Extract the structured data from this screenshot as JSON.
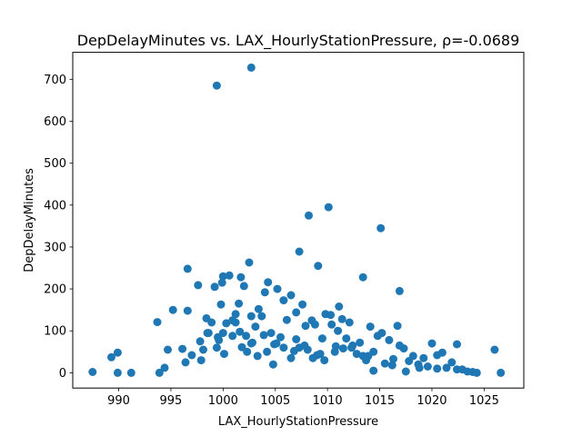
{
  "chart_data": {
    "type": "scatter",
    "title": "DepDelayMinutes vs. LAX_HourlyStationPressure, ρ=-0.0689",
    "xlabel": "LAX_HourlyStationPressure",
    "ylabel": "DepDelayMinutes",
    "xlim": [
      985.6,
      1028.8
    ],
    "ylim": [
      -36.4,
      764.4
    ],
    "xticks": [
      990,
      995,
      1000,
      1005,
      1010,
      1015,
      1020,
      1025
    ],
    "yticks": [
      0,
      100,
      200,
      300,
      400,
      500,
      600,
      700
    ],
    "grid": false,
    "point_color": "#1f77b4",
    "x": [
      987.5,
      989.3,
      989.9,
      989.9,
      991.2,
      993.7,
      993.9,
      994.4,
      994.7,
      995.2,
      996.1,
      996.4,
      996.6,
      997.0,
      997.6,
      997.8,
      998.1,
      998.4,
      998.6,
      998.9,
      999.2,
      999.4,
      999.5,
      999.8,
      999.9,
      1000.0,
      1000.1,
      1000.3,
      1000.6,
      1000.9,
      1001.2,
      1001.5,
      1001.7,
      1001.8,
      1002.0,
      1002.3,
      1002.5,
      1002.7,
      1002.8,
      1003.1,
      1003.3,
      1003.7,
      1004.0,
      1004.3,
      1004.6,
      1004.9,
      1005.2,
      1005.5,
      1005.8,
      1006.1,
      1006.5,
      1006.8,
      1007.0,
      1007.3,
      1007.6,
      1007.9,
      1008.2,
      1008.5,
      1008.8,
      1009.1,
      1009.5,
      1009.8,
      1010.1,
      1010.4,
      1010.8,
      1011.1,
      1011.4,
      1011.8,
      1012.1,
      1012.4,
      1012.8,
      1013.1,
      1013.4,
      1013.7,
      1014.1,
      1014.4,
      1014.8,
      1015.1,
      1015.5,
      1015.9,
      1016.3,
      1016.7,
      1016.9,
      1017.3,
      1017.8,
      1018.2,
      1018.7,
      1019.2,
      1019.6,
      1020.0,
      1020.5,
      1021.0,
      1021.4,
      1021.9,
      1022.4,
      1022.9,
      1023.4,
      1023.9,
      1024.3,
      1026.0,
      1026.6,
      999.4,
      1002.7,
      1010.3,
      1008.1,
      1015.2,
      1007.3,
      1009.0,
      1002.7,
      1013.4,
      1004.2,
      1016.9,
      996.6,
      1001.2,
      1000.0,
      999.6,
      1003.9,
      1011.0,
      1005.8,
      1007.0,
      1009.7,
      998.5,
      1003.4,
      1006.5,
      1010.7,
      997.9,
      1001.6,
      1004.8,
      1008.6,
      1012.3,
      1014.4,
      1017.5,
      1020.5,
      1022.4,
      1000.9,
      1002.2,
      1005.1,
      1007.8,
      1009.3,
      1011.5,
      1013.9,
      1016.2,
      1018.8
    ],
    "y": [
      2,
      37,
      48,
      0,
      0,
      121,
      0,
      12,
      55,
      150,
      57,
      25,
      148,
      42,
      209,
      75,
      55,
      130,
      95,
      120,
      205,
      60,
      85,
      163,
      215,
      230,
      45,
      118,
      232,
      88,
      120,
      165,
      228,
      61,
      207,
      50,
      263,
      135,
      72,
      110,
      40,
      135,
      192,
      216,
      95,
      68,
      200,
      85,
      173,
      126,
      185,
      52,
      144,
      289,
      163,
      112,
      375,
      125,
      115,
      255,
      82,
      140,
      395,
      115,
      63,
      158,
      128,
      82,
      120,
      65,
      45,
      72,
      228,
      30,
      110,
      50,
      88,
      345,
      22,
      78,
      33,
      112,
      195,
      58,
      28,
      40,
      20,
      35,
      15,
      70,
      42,
      48,
      12,
      25,
      68,
      8,
      3,
      2,
      0,
      55,
      0,
      685,
      728,
      138,
      55,
      95,
      60,
      42,
      70,
      40,
      50,
      65,
      248,
      140,
      95,
      78,
      90,
      100,
      60,
      80,
      30,
      95,
      152,
      35,
      50,
      30,
      98,
      20,
      35,
      60,
      5,
      3,
      10,
      8,
      125,
      88,
      70,
      65,
      45,
      58,
      40,
      18,
      12
    ]
  }
}
